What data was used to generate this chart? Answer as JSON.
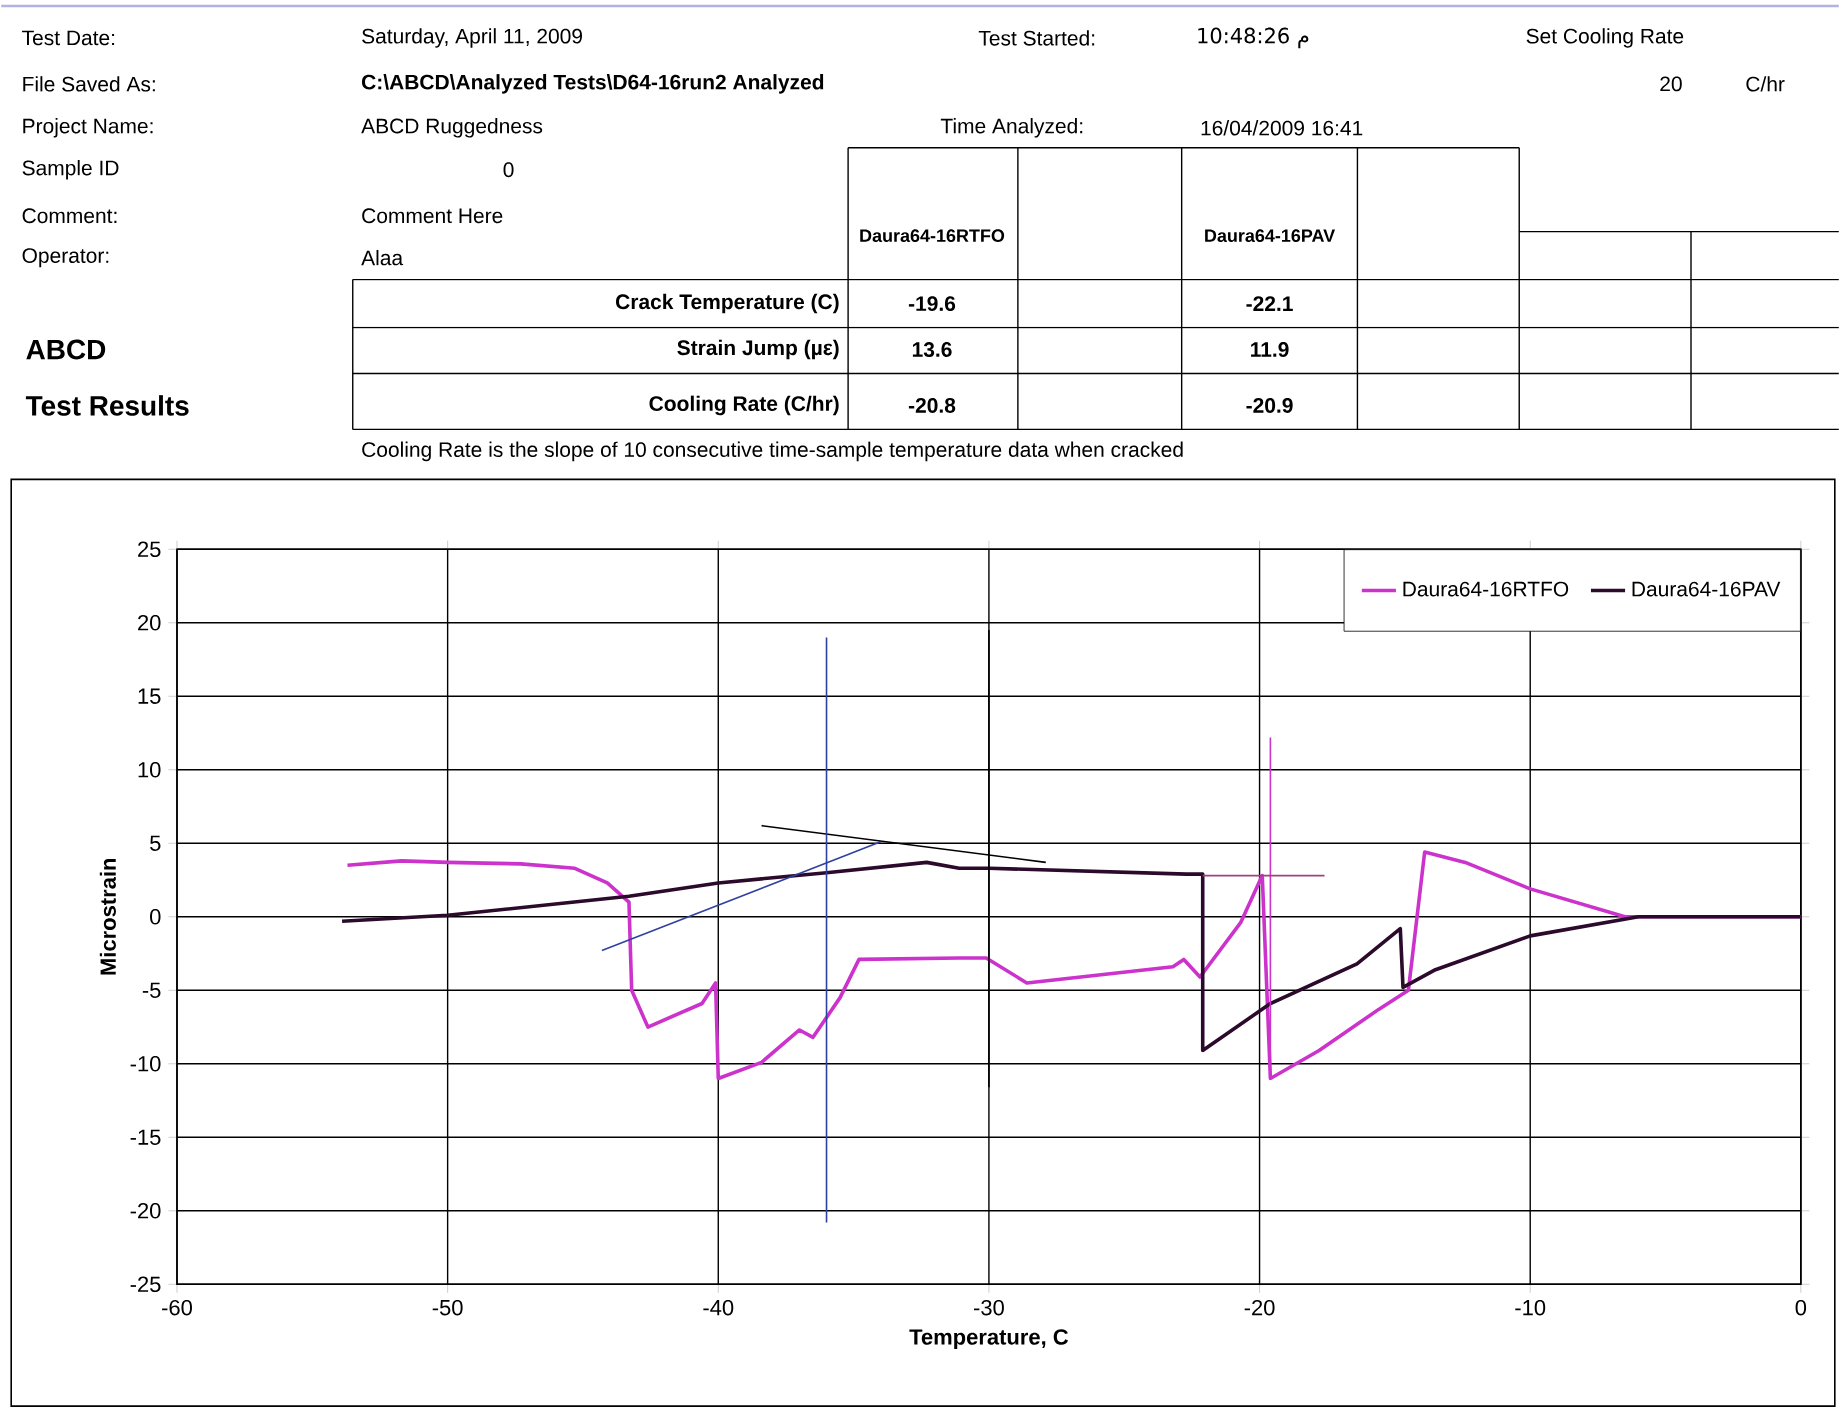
{
  "chart_data": {
    "type": "line",
    "xlabel": "Temperature, C",
    "ylabel": "Microstrain",
    "xlim": [
      -60,
      0
    ],
    "xticks": [
      -60,
      -50,
      -40,
      -30,
      -20,
      -10,
      0
    ],
    "ylim": [
      -25,
      25
    ],
    "yticks": [
      -25,
      -20,
      -15,
      -10,
      -5,
      0,
      5,
      10,
      15,
      20,
      25
    ],
    "grid": true,
    "legend": "top right",
    "series": [
      {
        "name": "Daura64-16RTFO",
        "color": "#cc33cc",
        "x": [
          -53.7,
          -51.7,
          -50,
          -47.3,
          -45.3,
          -44.1,
          -43.3,
          -43.2,
          -42.6,
          -40.6,
          -40.1,
          -40,
          -38.4,
          -37,
          -36.5,
          -35.5,
          -34.8,
          -31.1,
          -30.1,
          -28.6,
          -23.2,
          -22.8,
          -22.2,
          -20.7,
          -19.9,
          -19.6,
          -17.8,
          -15.6,
          -14.5,
          -13.9,
          -12.4,
          -10,
          -6.5,
          0
        ],
        "values": [
          3.5,
          3.8,
          3.7,
          3.6,
          3.3,
          2.3,
          1,
          -5,
          -7.5,
          -5.9,
          -4.5,
          -11,
          -9.9,
          -7.7,
          -8.2,
          -5.5,
          -2.9,
          -2.8,
          -2.8,
          -4.5,
          -3.4,
          -2.9,
          -4.1,
          -0.4,
          2.8,
          -11,
          -9.1,
          -6.3,
          -5,
          4.4,
          3.7,
          1.9,
          0,
          0
        ]
      },
      {
        "name": "Daura64-16PAV",
        "color": "#2b0a2b",
        "x": [
          -53.9,
          -50,
          -43.3,
          -40,
          -36,
          -32.3,
          -31.1,
          -30,
          -22.7,
          -22.1,
          -22.1,
          -19.6,
          -16.4,
          -14.8,
          -14.7,
          -13.5,
          -10,
          -6,
          0
        ],
        "values": [
          -0.3,
          0.1,
          1.4,
          2.3,
          3,
          3.7,
          3.3,
          3.3,
          2.9,
          2.9,
          -9.1,
          -5.9,
          -3.2,
          -0.8,
          -4.8,
          -3.6,
          -1.3,
          0,
          0
        ]
      },
      {
        "color": "#3040a0",
        "x": [
          -44.3,
          -34
        ],
        "values": [
          -2.3,
          5.1
        ]
      },
      {
        "color": "#000000",
        "x": [
          -38.4,
          -27.9
        ],
        "values": [
          6.2,
          3.7
        ]
      },
      {
        "color": "#3040a0",
        "x": [
          -36,
          -36
        ],
        "values": [
          19,
          -20.8
        ]
      },
      {
        "color": "#000000",
        "x": [
          -30,
          -30
        ],
        "values": [
          19.5,
          -11.6
        ]
      },
      {
        "color": "#cc33cc",
        "x": [
          -19.6,
          -19.6
        ],
        "values": [
          12.2,
          -11
        ]
      },
      {
        "color": "#a04080",
        "x": [
          -22.1,
          -17.6
        ],
        "values": [
          2.8,
          2.8
        ]
      }
    ],
    "annotations": [
      "Test Date:",
      "Saturday, April 11, 2009",
      "Test Started:",
      "10:48:26 م",
      "Set Cooling Rate",
      "File Saved As:",
      "C:\\ABCD\\Analyzed Tests\\D64-16run2 Analyzed",
      "20",
      "C/hr",
      "Project Name:",
      "ABCD Ruggedness",
      "Time Analyzed:",
      "16/04/2009 16:41",
      "Sample ID",
      "0",
      "Comment:",
      "Comment Here",
      "Operator:",
      "Alaa",
      "Daura64-16RTFO",
      "Daura64-16PAV",
      "Crack Temperature (C)",
      "-19.6",
      "-22.1",
      "Strain Jump (µε)",
      "13.6",
      "11.9",
      "Cooling Rate (C/hr)",
      "-20.8",
      "-20.9",
      "ABCD",
      "Test Results",
      "Cooling Rate is the slope of 10 consecutive time-sample temperature data when cracked"
    ]
  }
}
